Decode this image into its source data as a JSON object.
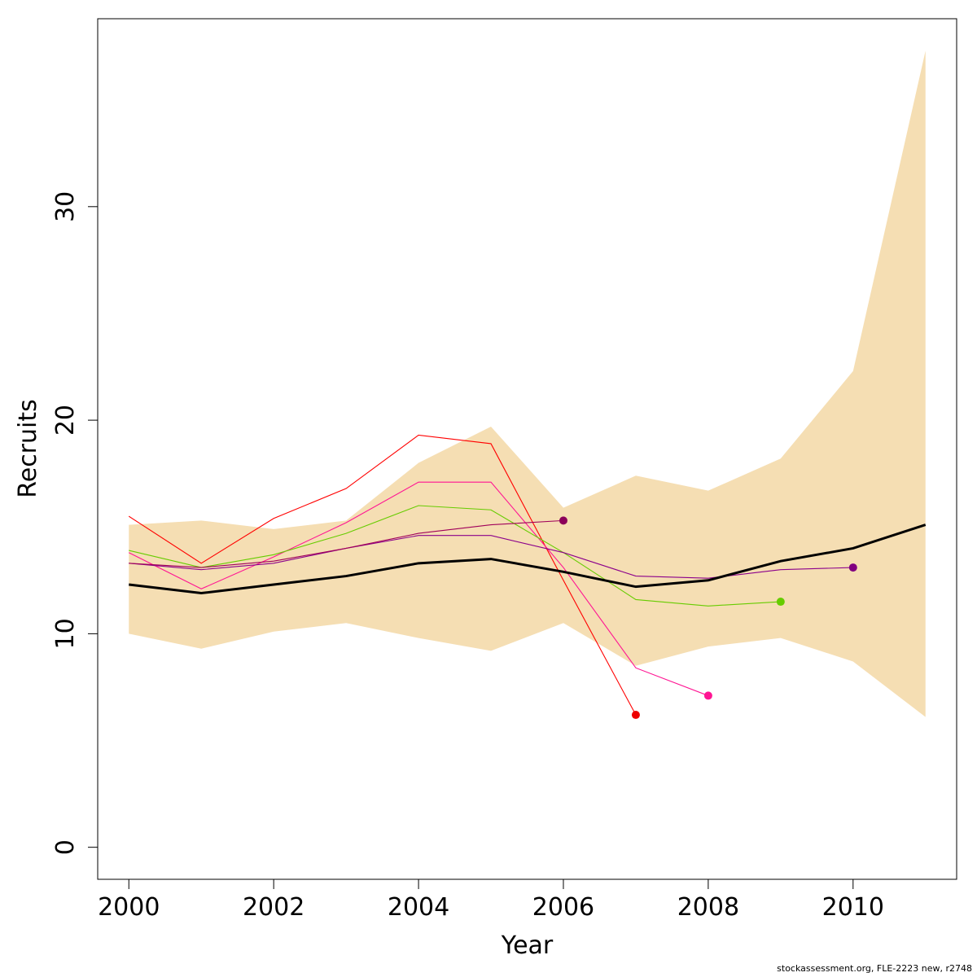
{
  "chart_data": {
    "type": "line",
    "title": "",
    "xlabel": "Year",
    "ylabel": "Recruits",
    "xlim": [
      1999.57,
      2011.43
    ],
    "ylim": [
      -1.5,
      38.8
    ],
    "grid": false,
    "x_ticks": [
      2000,
      2002,
      2004,
      2006,
      2008,
      2010
    ],
    "y_ticks": [
      0,
      10,
      20,
      30
    ],
    "band": {
      "color": "#f5deb3",
      "x": [
        2000,
        2001,
        2002,
        2003,
        2004,
        2005,
        2006,
        2007,
        2008,
        2009,
        2010,
        2011
      ],
      "lower": [
        10.0,
        9.3,
        10.1,
        10.5,
        9.8,
        9.2,
        10.5,
        8.5,
        9.4,
        9.8,
        8.7,
        6.1
      ],
      "upper": [
        15.1,
        15.3,
        14.9,
        15.3,
        18.0,
        19.7,
        15.9,
        17.4,
        16.7,
        18.2,
        22.3,
        37.3
      ]
    },
    "main": {
      "color": "#000000",
      "x": [
        2000,
        2001,
        2002,
        2003,
        2004,
        2005,
        2006,
        2007,
        2008,
        2009,
        2010,
        2011
      ],
      "values": [
        12.3,
        11.9,
        12.3,
        12.7,
        13.3,
        13.5,
        12.9,
        12.2,
        12.5,
        13.4,
        14.0,
        15.1
      ]
    },
    "retro_series": [
      {
        "color": "#ff0000",
        "x": [
          2000,
          2001,
          2002,
          2003,
          2004,
          2005,
          2006,
          2007
        ],
        "values": [
          15.5,
          13.3,
          15.4,
          16.8,
          19.3,
          18.9,
          12.5,
          6.2
        ]
      },
      {
        "color": "#ff1493",
        "x": [
          2000,
          2001,
          2002,
          2003,
          2004,
          2005,
          2006,
          2007,
          2008
        ],
        "values": [
          13.8,
          12.1,
          13.6,
          15.2,
          17.1,
          17.1,
          13.1,
          8.4,
          7.1
        ]
      },
      {
        "color": "#66cc00",
        "x": [
          2000,
          2001,
          2002,
          2003,
          2004,
          2005,
          2006,
          2007,
          2008,
          2009
        ],
        "values": [
          13.9,
          13.1,
          13.7,
          14.7,
          16.0,
          15.8,
          13.8,
          11.6,
          11.3,
          11.5
        ]
      },
      {
        "color": "#8b008b",
        "x": [
          2000,
          2001,
          2002,
          2003,
          2004,
          2005,
          2006,
          2007,
          2008,
          2009,
          2010
        ],
        "values": [
          13.3,
          13.0,
          13.3,
          14.0,
          14.6,
          14.6,
          13.8,
          12.7,
          12.6,
          13.0,
          13.1
        ]
      },
      {
        "color": "#a0005a",
        "x": [
          2000,
          2001,
          2002,
          2003,
          2004,
          2005,
          2006
        ],
        "values": [
          13.3,
          13.1,
          13.4,
          14.0,
          14.7,
          15.1,
          15.3
        ]
      }
    ],
    "end_points": [
      {
        "x": 2006,
        "y": 15.3,
        "color": "#8b005a"
      },
      {
        "x": 2007,
        "y": 6.2,
        "color": "#ee0000"
      },
      {
        "x": 2008,
        "y": 7.1,
        "color": "#ff1493"
      },
      {
        "x": 2009,
        "y": 11.5,
        "color": "#66cc00"
      },
      {
        "x": 2010,
        "y": 13.1,
        "color": "#800080"
      }
    ]
  },
  "footer": {
    "source_note": "stockassessment.org, FLE-2223 new, r2748"
  }
}
